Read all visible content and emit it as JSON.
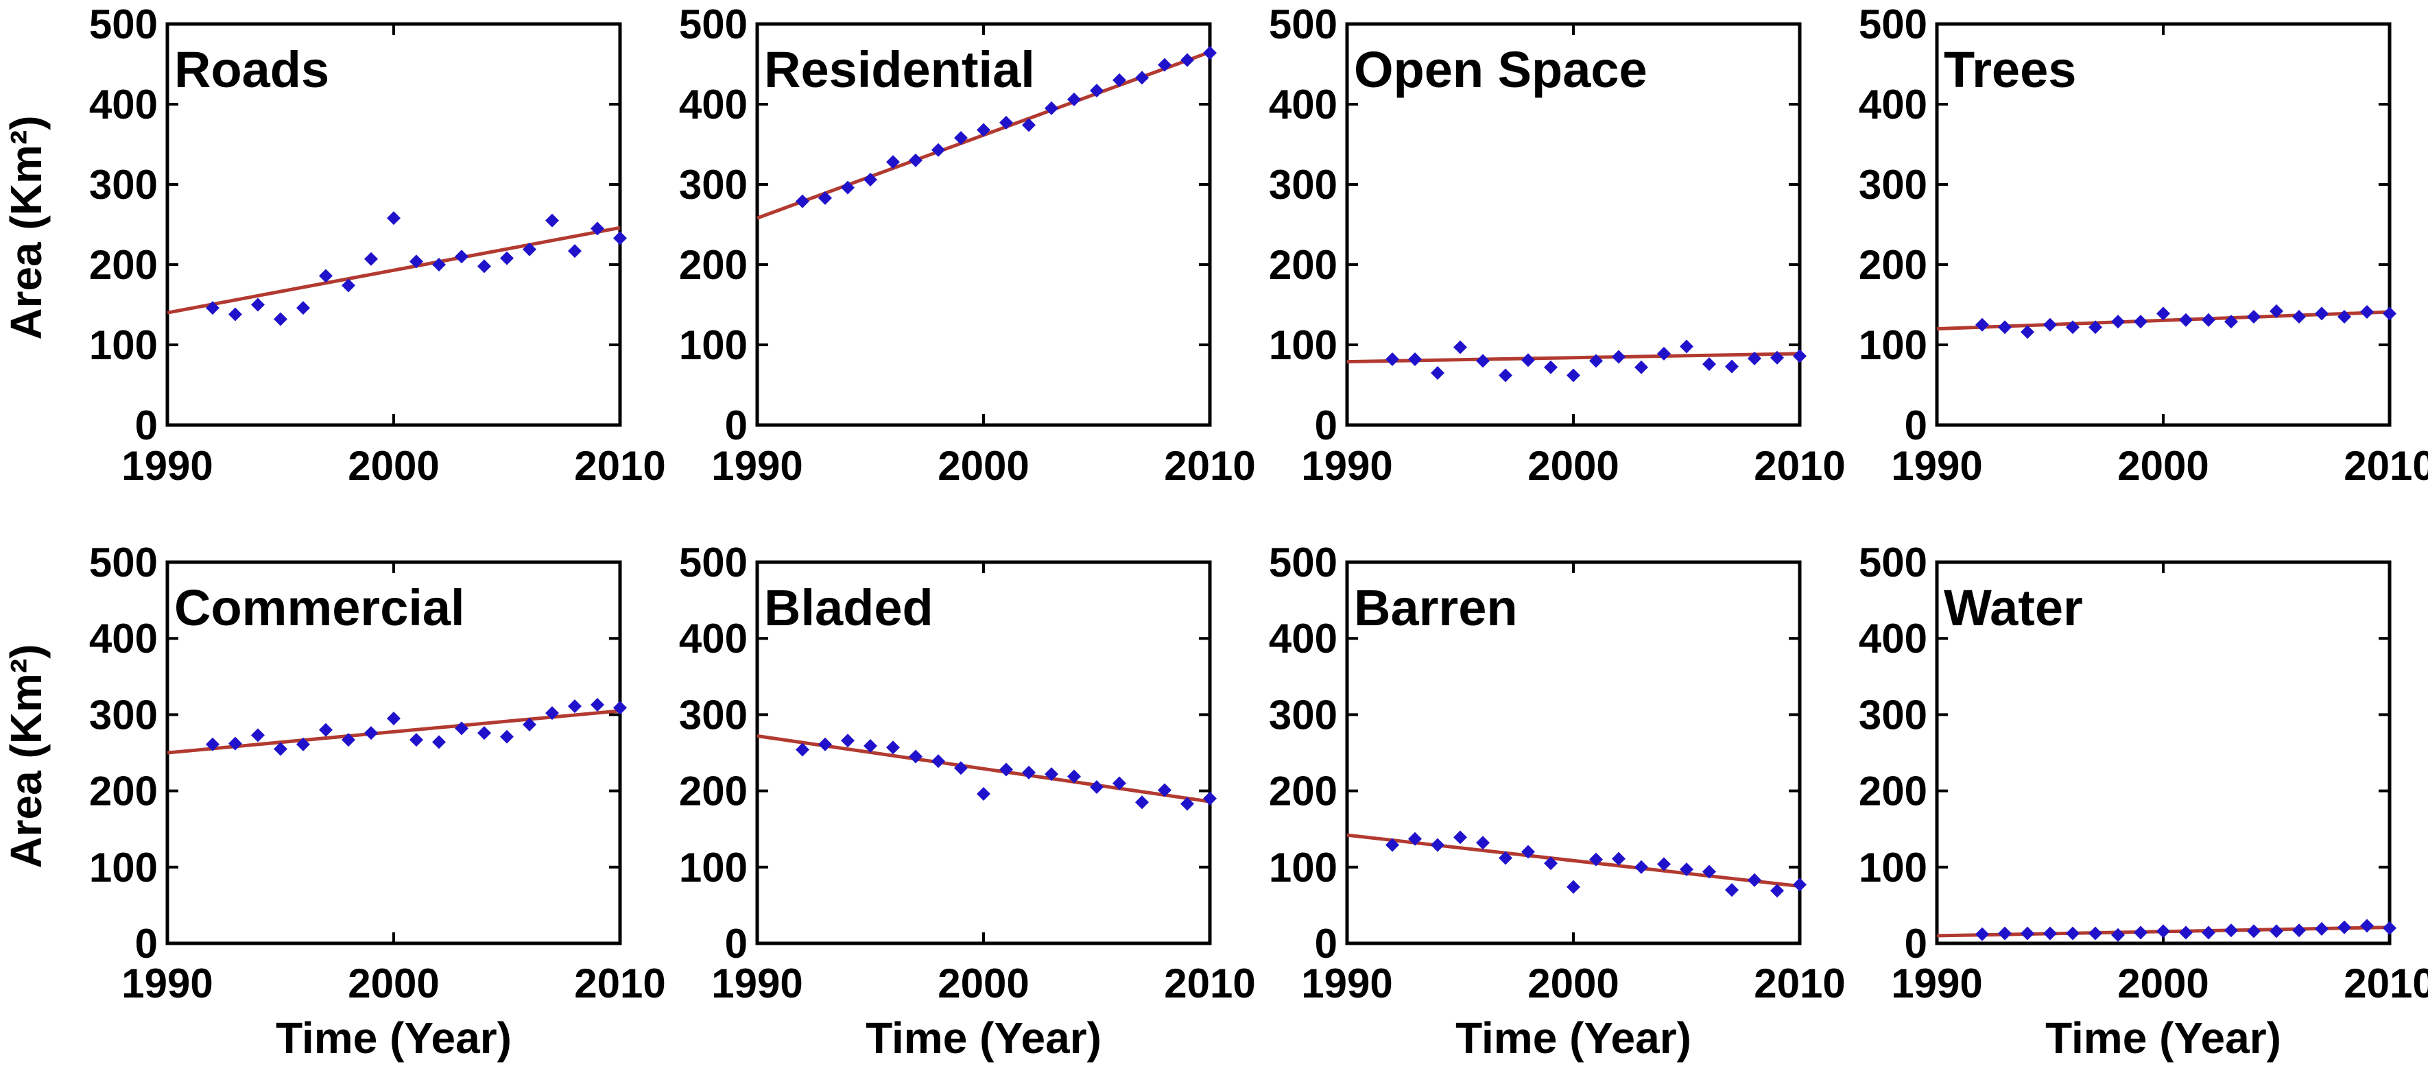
{
  "figure": {
    "background": "#ffffff",
    "description": "Land cover area trends 1990-2010, eight panels"
  },
  "axes": {
    "xlabel": "Time (Year)",
    "ylabel": "Area (Km²)",
    "xlim": [
      1990,
      2010
    ],
    "ylim": [
      0,
      500
    ],
    "xticks": [
      1990,
      2000,
      2010
    ],
    "yticks": [
      0,
      100,
      200,
      300,
      400,
      500
    ],
    "grid": false,
    "legend": "none"
  },
  "style": {
    "marker_color": "#2012cb",
    "trend_color": "#b23a30",
    "axis_color": "#000000",
    "text_color": "#000000"
  },
  "chart_data": [
    {
      "type": "scatter",
      "title": "Roads",
      "x": [
        1992,
        1993,
        1994,
        1995,
        1996,
        1997,
        1998,
        1999,
        2000,
        2001,
        2002,
        2003,
        2004,
        2005,
        2006,
        2007,
        2008,
        2009,
        2010
      ],
      "y": [
        146,
        138,
        150,
        132,
        146,
        186,
        174,
        207,
        258,
        204,
        200,
        210,
        198,
        208,
        219,
        255,
        217,
        245,
        233
      ],
      "trend": {
        "x": [
          1990,
          2010
        ],
        "y": [
          140,
          246
        ]
      }
    },
    {
      "type": "scatter",
      "title": "Residential",
      "x": [
        1992,
        1993,
        1994,
        1995,
        1996,
        1997,
        1998,
        1999,
        2000,
        2001,
        2002,
        2003,
        2004,
        2005,
        2006,
        2007,
        2008,
        2009,
        2010
      ],
      "y": [
        279,
        283,
        296,
        306,
        328,
        330,
        343,
        358,
        368,
        377,
        374,
        395,
        406,
        417,
        430,
        433,
        449,
        455,
        464
      ],
      "trend": {
        "x": [
          1990,
          2010
        ],
        "y": [
          258,
          465
        ]
      }
    },
    {
      "type": "scatter",
      "title": "Open Space",
      "x": [
        1992,
        1993,
        1994,
        1995,
        1996,
        1997,
        1998,
        1999,
        2000,
        2001,
        2002,
        2003,
        2004,
        2005,
        2006,
        2007,
        2008,
        2009,
        2010
      ],
      "y": [
        82,
        82,
        65,
        97,
        80,
        62,
        81,
        72,
        62,
        80,
        85,
        72,
        89,
        98,
        76,
        73,
        83,
        84,
        86
      ],
      "trend": {
        "x": [
          1990,
          2010
        ],
        "y": [
          79,
          89
        ]
      }
    },
    {
      "type": "scatter",
      "title": "Trees",
      "x": [
        1992,
        1993,
        1994,
        1995,
        1996,
        1997,
        1998,
        1999,
        2000,
        2001,
        2002,
        2003,
        2004,
        2005,
        2006,
        2007,
        2008,
        2009,
        2010
      ],
      "y": [
        125,
        122,
        116,
        125,
        122,
        122,
        129,
        129,
        139,
        131,
        131,
        129,
        135,
        142,
        135,
        139,
        135,
        141,
        139
      ],
      "trend": {
        "x": [
          1990,
          2010
        ],
        "y": [
          120,
          141
        ]
      }
    },
    {
      "type": "scatter",
      "title": "Commercial",
      "x": [
        1992,
        1993,
        1994,
        1995,
        1996,
        1997,
        1998,
        1999,
        2000,
        2001,
        2002,
        2003,
        2004,
        2005,
        2006,
        2007,
        2008,
        2009,
        2010
      ],
      "y": [
        261,
        262,
        273,
        255,
        261,
        280,
        267,
        276,
        295,
        267,
        264,
        282,
        276,
        271,
        287,
        302,
        311,
        313,
        309
      ],
      "trend": {
        "x": [
          1990,
          2010
        ],
        "y": [
          250,
          305
        ]
      }
    },
    {
      "type": "scatter",
      "title": "Bladed",
      "x": [
        1992,
        1993,
        1994,
        1995,
        1996,
        1997,
        1998,
        1999,
        2000,
        2001,
        2002,
        2003,
        2004,
        2005,
        2006,
        2007,
        2008,
        2009,
        2010
      ],
      "y": [
        254,
        261,
        266,
        259,
        257,
        245,
        239,
        230,
        196,
        228,
        224,
        222,
        219,
        205,
        210,
        185,
        201,
        183,
        190
      ],
      "trend": {
        "x": [
          1990,
          2010
        ],
        "y": [
          272,
          186
        ]
      }
    },
    {
      "type": "scatter",
      "title": "Barren",
      "x": [
        1992,
        1993,
        1994,
        1995,
        1996,
        1997,
        1998,
        1999,
        2000,
        2001,
        2002,
        2003,
        2004,
        2005,
        2006,
        2007,
        2008,
        2009,
        2010
      ],
      "y": [
        129,
        137,
        129,
        139,
        132,
        112,
        120,
        105,
        74,
        110,
        111,
        100,
        104,
        97,
        94,
        70,
        83,
        69,
        77
      ],
      "trend": {
        "x": [
          1990,
          2010
        ],
        "y": [
          142,
          75
        ]
      }
    },
    {
      "type": "scatter",
      "title": "Water",
      "x": [
        1992,
        1993,
        1994,
        1995,
        1996,
        1997,
        1998,
        1999,
        2000,
        2001,
        2002,
        2003,
        2004,
        2005,
        2006,
        2007,
        2008,
        2009,
        2010
      ],
      "y": [
        12,
        13,
        13,
        13,
        13,
        13,
        11,
        14,
        16,
        14,
        14,
        17,
        16,
        16,
        17,
        19,
        21,
        23,
        20
      ],
      "trend": {
        "x": [
          1990,
          2010
        ],
        "y": [
          10,
          21
        ]
      }
    }
  ]
}
